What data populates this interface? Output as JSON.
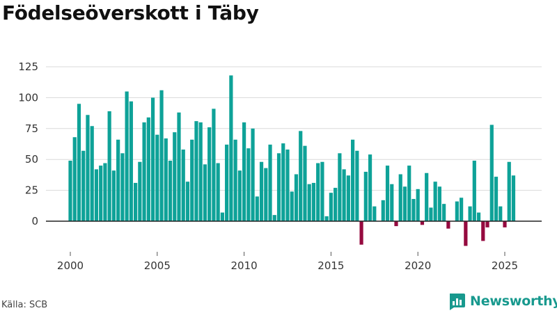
{
  "colors": {
    "positive": "#0ea298",
    "negative": "#950a3f",
    "grid": "#d9d9d9",
    "baseline": "#222222",
    "brand": "#18998e"
  },
  "footer": {
    "source": "Källa: SCB",
    "brand": "Newsworthy"
  },
  "chart_data": {
    "type": "bar",
    "title": "Födelseöverskott i Täby",
    "xlabel": "",
    "ylabel": "",
    "ylim": [
      -20,
      135
    ],
    "yticks": [
      0,
      25,
      50,
      75,
      100,
      125
    ],
    "xticks": [
      2000,
      2005,
      2010,
      2015,
      2020,
      2025
    ],
    "xlim": [
      1999.5,
      2027.2
    ],
    "frequency": "monthly, quarterly bar spacing",
    "x": [
      2000.0,
      2000.25,
      2000.5,
      2000.75,
      2001.0,
      2001.25,
      2001.5,
      2001.75,
      2002.0,
      2002.25,
      2002.5,
      2002.75,
      2003.0,
      2003.25,
      2003.5,
      2003.75,
      2004.0,
      2004.25,
      2004.5,
      2004.75,
      2005.0,
      2005.25,
      2005.5,
      2005.75,
      2006.0,
      2006.25,
      2006.5,
      2006.75,
      2007.0,
      2007.25,
      2007.5,
      2007.75,
      2008.0,
      2008.25,
      2008.5,
      2008.75,
      2009.0,
      2009.25,
      2009.5,
      2009.75,
      2010.0,
      2010.25,
      2010.5,
      2010.75,
      2011.0,
      2011.25,
      2011.5,
      2011.75,
      2012.0,
      2012.25,
      2012.5,
      2012.75,
      2013.0,
      2013.25,
      2013.5,
      2013.75,
      2014.0,
      2014.25,
      2014.5,
      2014.75,
      2015.0,
      2015.25,
      2015.5,
      2015.75,
      2016.0,
      2016.25,
      2016.5,
      2016.75,
      2017.0,
      2017.25,
      2017.5,
      2017.75,
      2018.0,
      2018.25,
      2018.5,
      2018.75,
      2019.0,
      2019.25,
      2019.5,
      2019.75,
      2020.0,
      2020.25,
      2020.5,
      2020.75,
      2021.0,
      2021.25,
      2021.5,
      2021.75,
      2022.0,
      2022.25,
      2022.5,
      2022.75,
      2023.0,
      2023.25,
      2023.5,
      2023.75,
      2024.0,
      2024.25,
      2024.5,
      2024.75,
      2025.0,
      2025.25,
      2025.5
    ],
    "values": [
      49,
      68,
      95,
      57,
      86,
      77,
      42,
      45,
      47,
      89,
      41,
      66,
      55,
      105,
      97,
      31,
      48,
      80,
      84,
      100,
      70,
      106,
      67,
      49,
      72,
      88,
      58,
      32,
      66,
      81,
      80,
      46,
      76,
      91,
      47,
      7,
      62,
      118,
      66,
      41,
      80,
      59,
      75,
      20,
      48,
      43,
      62,
      5,
      55,
      63,
      58,
      24,
      38,
      73,
      61,
      30,
      31,
      47,
      48,
      4,
      23,
      27,
      55,
      42,
      37,
      66,
      57,
      -19,
      40,
      54,
      12,
      0,
      17,
      45,
      30,
      -4,
      38,
      28,
      45,
      18,
      26,
      -3,
      39,
      11,
      32,
      28,
      14,
      -6,
      0,
      16,
      19,
      -20,
      12,
      49,
      7,
      -16,
      -5,
      78,
      36,
      12,
      -5,
      48,
      37
    ]
  }
}
